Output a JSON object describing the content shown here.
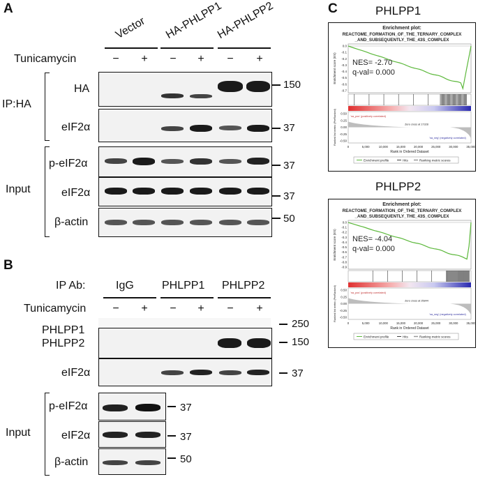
{
  "panel_A": {
    "label": "A",
    "groups": [
      "Vector",
      "HA-PHLPP1",
      "HA-PHLPP2"
    ],
    "treatment_label": "Tunicamycin",
    "signs": [
      "−",
      "+",
      "−",
      "+",
      "−",
      "+"
    ],
    "ip_label": "IP:HA",
    "input_label": "Input",
    "rows": [
      {
        "label": "HA",
        "mw": "150"
      },
      {
        "label": "eIF2α",
        "mw": "37"
      },
      {
        "label": "p-eIF2α",
        "mw": "37"
      },
      {
        "label": "eIF2α",
        "mw": "37"
      },
      {
        "label": "β-actin",
        "mw": "50"
      }
    ]
  },
  "panel_B": {
    "label": "B",
    "ip_ab_label": "IP Ab:",
    "groups": [
      "IgG",
      "PHLPP1",
      "PHLPP2"
    ],
    "treatment_label": "Tunicamycin",
    "signs": [
      "−",
      "+",
      "−",
      "+",
      "−",
      "+"
    ],
    "input_signs_note": "",
    "input_label": "Input",
    "ip_rows": [
      {
        "label": "PHLPP1",
        "mw": "250"
      },
      {
        "label": "PHLPP2",
        "mw": "150"
      },
      {
        "label": "eIF2α",
        "mw": "37"
      }
    ],
    "input_rows": [
      {
        "label": "p-eIF2α",
        "mw": "37"
      },
      {
        "label": "eIF2α",
        "mw": "37"
      },
      {
        "label": "β-actin",
        "mw": "50"
      }
    ]
  },
  "panel_C": {
    "label": "C",
    "plots": [
      {
        "heading": "PHLPP1",
        "plot_title_1": "Enrichment plot:",
        "plot_title_2": "REACTOME_FORMATION_OF_THE_TERNARY_COMPLEX",
        "plot_title_3": "_AND_SUBSEQUENTLY_THE_43S_COMPLEX",
        "nes": "NES= -2.70",
        "qval": "q-val= 0.000",
        "yaxis_es": "Enrichment score (ES)",
        "yaxis_rank": "Ranked list metric (PreRanked)",
        "es_ticks": [
          "0.0",
          "-0.1",
          "-0.2",
          "-0.3",
          "-0.4",
          "-0.5",
          "-0.6",
          "-0.7"
        ],
        "rank_ticks": [
          "0.50",
          "0.25",
          "0.00",
          "-0.25",
          "-0.50"
        ],
        "x_ticks": [
          "0",
          "5,000",
          "10,000",
          "15,000",
          "20,000",
          "25,000",
          "30,000",
          "35,000"
        ],
        "x_label": "Rank in Ordered Dataset",
        "pos_note": "'na_pos' (positively correlated)",
        "neg_note": "'na_neg' (negatively correlated)",
        "zero_cross": "Zero cross at 17328",
        "legend": [
          "Enrichment profile",
          "Hits",
          "Ranking metric scores"
        ],
        "es_curve_min": -0.7,
        "es_curve_min_rank_fraction": 0.93
      },
      {
        "heading": "PHLPP2",
        "plot_title_1": "Enrichment plot:",
        "plot_title_2": "REACTOME_FORMATION_OF_THE_TERNARY_COMPLEX",
        "plot_title_3": "_AND_SUBSEQUENTLY_THE_43S_COMPLEX",
        "nes": "NES= -4.04",
        "qval": "q-val= 0.000",
        "yaxis_es": "Enrichment score (ES)",
        "yaxis_rank": "Ranked list metric (PreRanked)",
        "es_ticks": [
          "0.0",
          "-0.1",
          "-0.2",
          "-0.3",
          "-0.4",
          "-0.5",
          "-0.6",
          "-0.7",
          "-0.8",
          "-0.9"
        ],
        "rank_ticks": [
          "0.50",
          "0.25",
          "0.00",
          "-0.25",
          "-0.50"
        ],
        "x_ticks": [
          "0",
          "5,000",
          "10,000",
          "15,000",
          "20,000",
          "25,000",
          "30,000",
          "35,000"
        ],
        "x_label": "Rank in Ordered Dataset",
        "pos_note": "'na_pos' (positively correlated)",
        "neg_note": "'na_neg' (negatively correlated)",
        "zero_cross": "Zero cross at 25844",
        "legend": [
          "Enrichment profile",
          "Hits",
          "Ranking metric scores"
        ],
        "es_curve_min": -0.86,
        "es_curve_min_rank_fraction": 0.97
      }
    ]
  }
}
